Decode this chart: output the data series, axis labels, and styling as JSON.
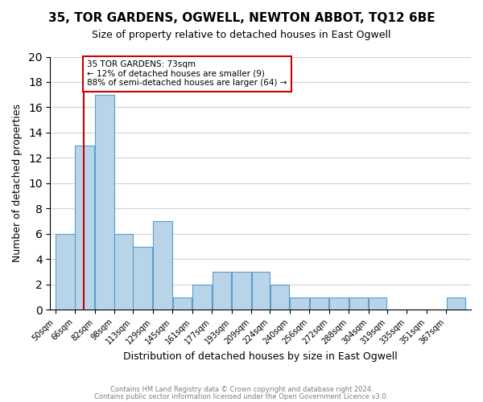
{
  "title1": "35, TOR GARDENS, OGWELL, NEWTON ABBOT, TQ12 6BE",
  "title2": "Size of property relative to detached houses in East Ogwell",
  "xlabel": "Distribution of detached houses by size in East Ogwell",
  "ylabel": "Number of detached properties",
  "bar_values": [
    6,
    13,
    17,
    6,
    5,
    7,
    1,
    2,
    3,
    3,
    3,
    2,
    1,
    1,
    1,
    1,
    1,
    0,
    0,
    0,
    1
  ],
  "bin_labels": [
    "50sqm",
    "66sqm",
    "82sqm",
    "98sqm",
    "113sqm",
    "129sqm",
    "145sqm",
    "161sqm",
    "177sqm",
    "193sqm",
    "209sqm",
    "224sqm",
    "240sqm",
    "256sqm",
    "272sqm",
    "288sqm",
    "304sqm",
    "319sqm",
    "335sqm",
    "351sqm",
    "367sqm"
  ],
  "bar_color": "#b8d4e8",
  "bar_edge_color": "#5a9ec9",
  "ref_line_x": 73,
  "ref_line_color": "#cc0000",
  "ylim": [
    0,
    20
  ],
  "yticks": [
    0,
    2,
    4,
    6,
    8,
    10,
    12,
    14,
    16,
    18,
    20
  ],
  "annotation_title": "35 TOR GARDENS: 73sqm",
  "annotation_line1": "← 12% of detached houses are smaller (9)",
  "annotation_line2": "88% of semi-detached houses are larger (64) →",
  "annotation_box_color": "#ffffff",
  "annotation_box_edge_color": "#cc0000",
  "footer1": "Contains HM Land Registry data © Crown copyright and database right 2024.",
  "footer2": "Contains public sector information licensed under the Open Government Licence v3.0.",
  "bin_edges": [
    50,
    66,
    82,
    98,
    113,
    129,
    145,
    161,
    177,
    193,
    209,
    224,
    240,
    256,
    272,
    288,
    304,
    319,
    335,
    351,
    367,
    383
  ]
}
